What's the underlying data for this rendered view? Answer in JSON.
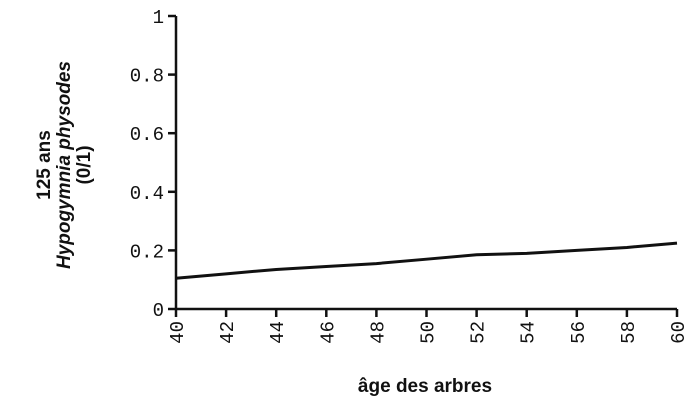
{
  "chart_data": {
    "type": "line",
    "x_label": "âge des arbres",
    "y_label": [
      "125 ans",
      "Hypogymnia physodes",
      "(0/1)"
    ],
    "x": [
      40,
      42,
      44,
      46,
      48,
      50,
      52,
      54,
      56,
      58,
      60
    ],
    "values": [
      0.105,
      0.12,
      0.135,
      0.145,
      0.155,
      0.17,
      0.185,
      0.19,
      0.2,
      0.21,
      0.225
    ],
    "color": "#111111",
    "xlim": [
      40,
      60
    ],
    "xticks": [
      40,
      42,
      44,
      46,
      48,
      50,
      52,
      54,
      56,
      58,
      60
    ],
    "ylim": [
      0,
      1
    ],
    "yticks": [
      0,
      0.2,
      0.4,
      0.6,
      0.8,
      1
    ],
    "grid": false
  }
}
